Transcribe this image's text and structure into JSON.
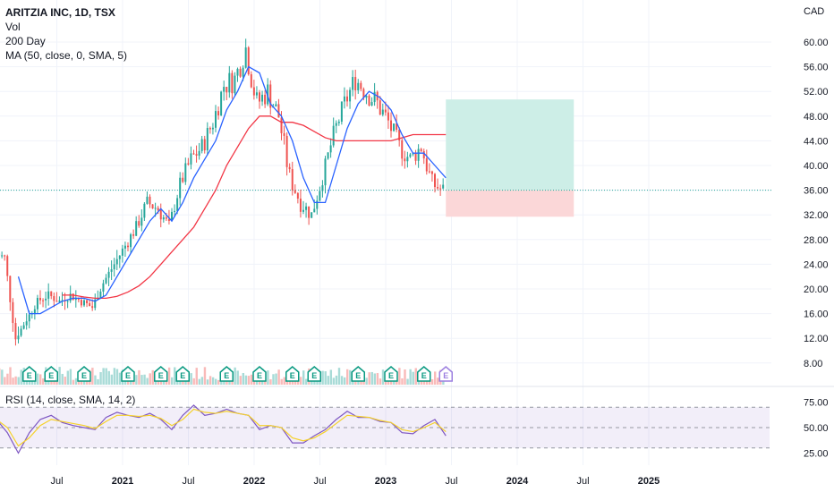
{
  "header": {
    "title": "ARITZIA INC, 1D, TSX",
    "indicators": [
      "Vol",
      "200 Day",
      "MA (50, close, 0, SMA, 5)"
    ]
  },
  "rsi_label": "RSI (14, close, SMA, 14, 2)",
  "currency": "CAD",
  "colors": {
    "up": "#26a69a",
    "down": "#ef5350",
    "ma200": "#f23645",
    "ma50": "#2962ff",
    "rsi": "#7e57c2",
    "rsi_ma": "#f5d12a",
    "target_zone": "#cdeee7",
    "stop_zone": "#fbd7d8",
    "earnings": "#089981",
    "earnings_future": "#9c7fe0"
  },
  "chart_data": {
    "type": "candlestick",
    "price_axis": {
      "ticks": [
        8,
        12,
        16,
        20,
        24,
        28,
        32,
        36,
        40,
        44,
        48,
        52,
        56,
        60
      ],
      "labels": [
        "8.00",
        "12.00",
        "16.00",
        "20.00",
        "24.00",
        "28.00",
        "32.00",
        "36.00",
        "40.00",
        "44.00",
        "48.00",
        "52.00",
        "56.00",
        "60.00"
      ]
    },
    "rsi_axis": {
      "ticks": [
        25,
        50,
        75
      ],
      "labels": [
        "25.00",
        "50.00",
        "75.00"
      ]
    },
    "time_axis": [
      {
        "label": "Jul",
        "date": "2020-07",
        "bold": false
      },
      {
        "label": "2021",
        "date": "2021-01",
        "bold": true
      },
      {
        "label": "Jul",
        "date": "2021-07",
        "bold": false
      },
      {
        "label": "2022",
        "date": "2022-01",
        "bold": true
      },
      {
        "label": "Jul",
        "date": "2022-07",
        "bold": false
      },
      {
        "label": "2023",
        "date": "2023-01",
        "bold": true
      },
      {
        "label": "Jul",
        "date": "2023-07",
        "bold": false
      },
      {
        "label": "2024",
        "date": "2024-01",
        "bold": true
      },
      {
        "label": "Jul",
        "date": "2024-07",
        "bold": false
      },
      {
        "label": "2025",
        "date": "2025-01",
        "bold": true
      }
    ],
    "months": [
      "2020-01",
      "2020-02",
      "2020-03",
      "2020-04",
      "2020-05",
      "2020-06",
      "2020-07",
      "2020-08",
      "2020-09",
      "2020-10",
      "2020-11",
      "2020-12",
      "2021-01",
      "2021-02",
      "2021-03",
      "2021-04",
      "2021-05",
      "2021-06",
      "2021-07",
      "2021-08",
      "2021-09",
      "2021-10",
      "2021-11",
      "2021-12",
      "2022-01",
      "2022-02",
      "2022-03",
      "2022-04",
      "2022-05",
      "2022-06",
      "2022-07",
      "2022-08",
      "2022-09",
      "2022-10",
      "2022-11",
      "2022-12",
      "2023-01",
      "2023-02",
      "2023-03",
      "2023-04",
      "2023-05",
      "2023-06"
    ],
    "close": [
      26,
      25,
      12,
      15,
      18,
      19,
      18,
      19,
      18,
      17,
      21,
      24,
      27,
      30,
      34,
      33,
      30,
      37,
      41,
      43,
      47,
      53,
      54,
      59,
      50,
      52,
      48,
      38,
      34,
      32,
      38,
      45,
      50,
      54,
      52,
      50,
      47,
      43,
      41,
      43,
      37,
      36
    ],
    "ma200": [
      null,
      null,
      null,
      null,
      null,
      null,
      19,
      19,
      18.7,
      18.5,
      18.5,
      18.8,
      19.5,
      20.5,
      22,
      24,
      26,
      28,
      30,
      33,
      36,
      40,
      43,
      46,
      48,
      48,
      47,
      47,
      46.5,
      45.5,
      44.5,
      44,
      44,
      44,
      44,
      44,
      44,
      44.5,
      45,
      45,
      45,
      45
    ],
    "ma50": [
      null,
      null,
      22,
      16,
      16,
      17,
      18,
      18.5,
      18.5,
      18,
      19,
      22,
      25,
      28,
      31,
      33,
      31,
      34,
      38,
      41,
      44,
      49,
      52,
      56,
      55,
      50,
      48,
      44,
      38,
      34,
      34,
      40,
      46,
      50,
      52,
      51,
      49,
      45,
      42,
      42,
      40,
      38
    ],
    "rsi": [
      58,
      45,
      25,
      45,
      58,
      62,
      55,
      52,
      50,
      48,
      60,
      65,
      62,
      60,
      64,
      58,
      48,
      62,
      72,
      62,
      64,
      68,
      64,
      62,
      48,
      52,
      50,
      35,
      35,
      42,
      48,
      58,
      66,
      60,
      60,
      56,
      55,
      45,
      44,
      52,
      58,
      42
    ],
    "rsi_ma": [
      58,
      50,
      32,
      40,
      52,
      58,
      56,
      54,
      52,
      49,
      56,
      62,
      62,
      61,
      62,
      59,
      52,
      58,
      68,
      65,
      64,
      66,
      64,
      62,
      52,
      52,
      50,
      40,
      37,
      40,
      46,
      54,
      62,
      61,
      60,
      57,
      55,
      48,
      46,
      50,
      55,
      46
    ],
    "last_price": 36,
    "position": {
      "type": "long",
      "entry": 36,
      "target": 50.7,
      "stop": 31.7,
      "start": "2023-06",
      "end": "2024-06"
    },
    "earnings": [
      "2020-04",
      "2020-06",
      "2020-09",
      "2021-01",
      "2021-04",
      "2021-06",
      "2021-10",
      "2022-01",
      "2022-04",
      "2022-06",
      "2022-10",
      "2023-01",
      "2023-04"
    ],
    "earnings_upcoming": [
      "2023-06"
    ]
  }
}
